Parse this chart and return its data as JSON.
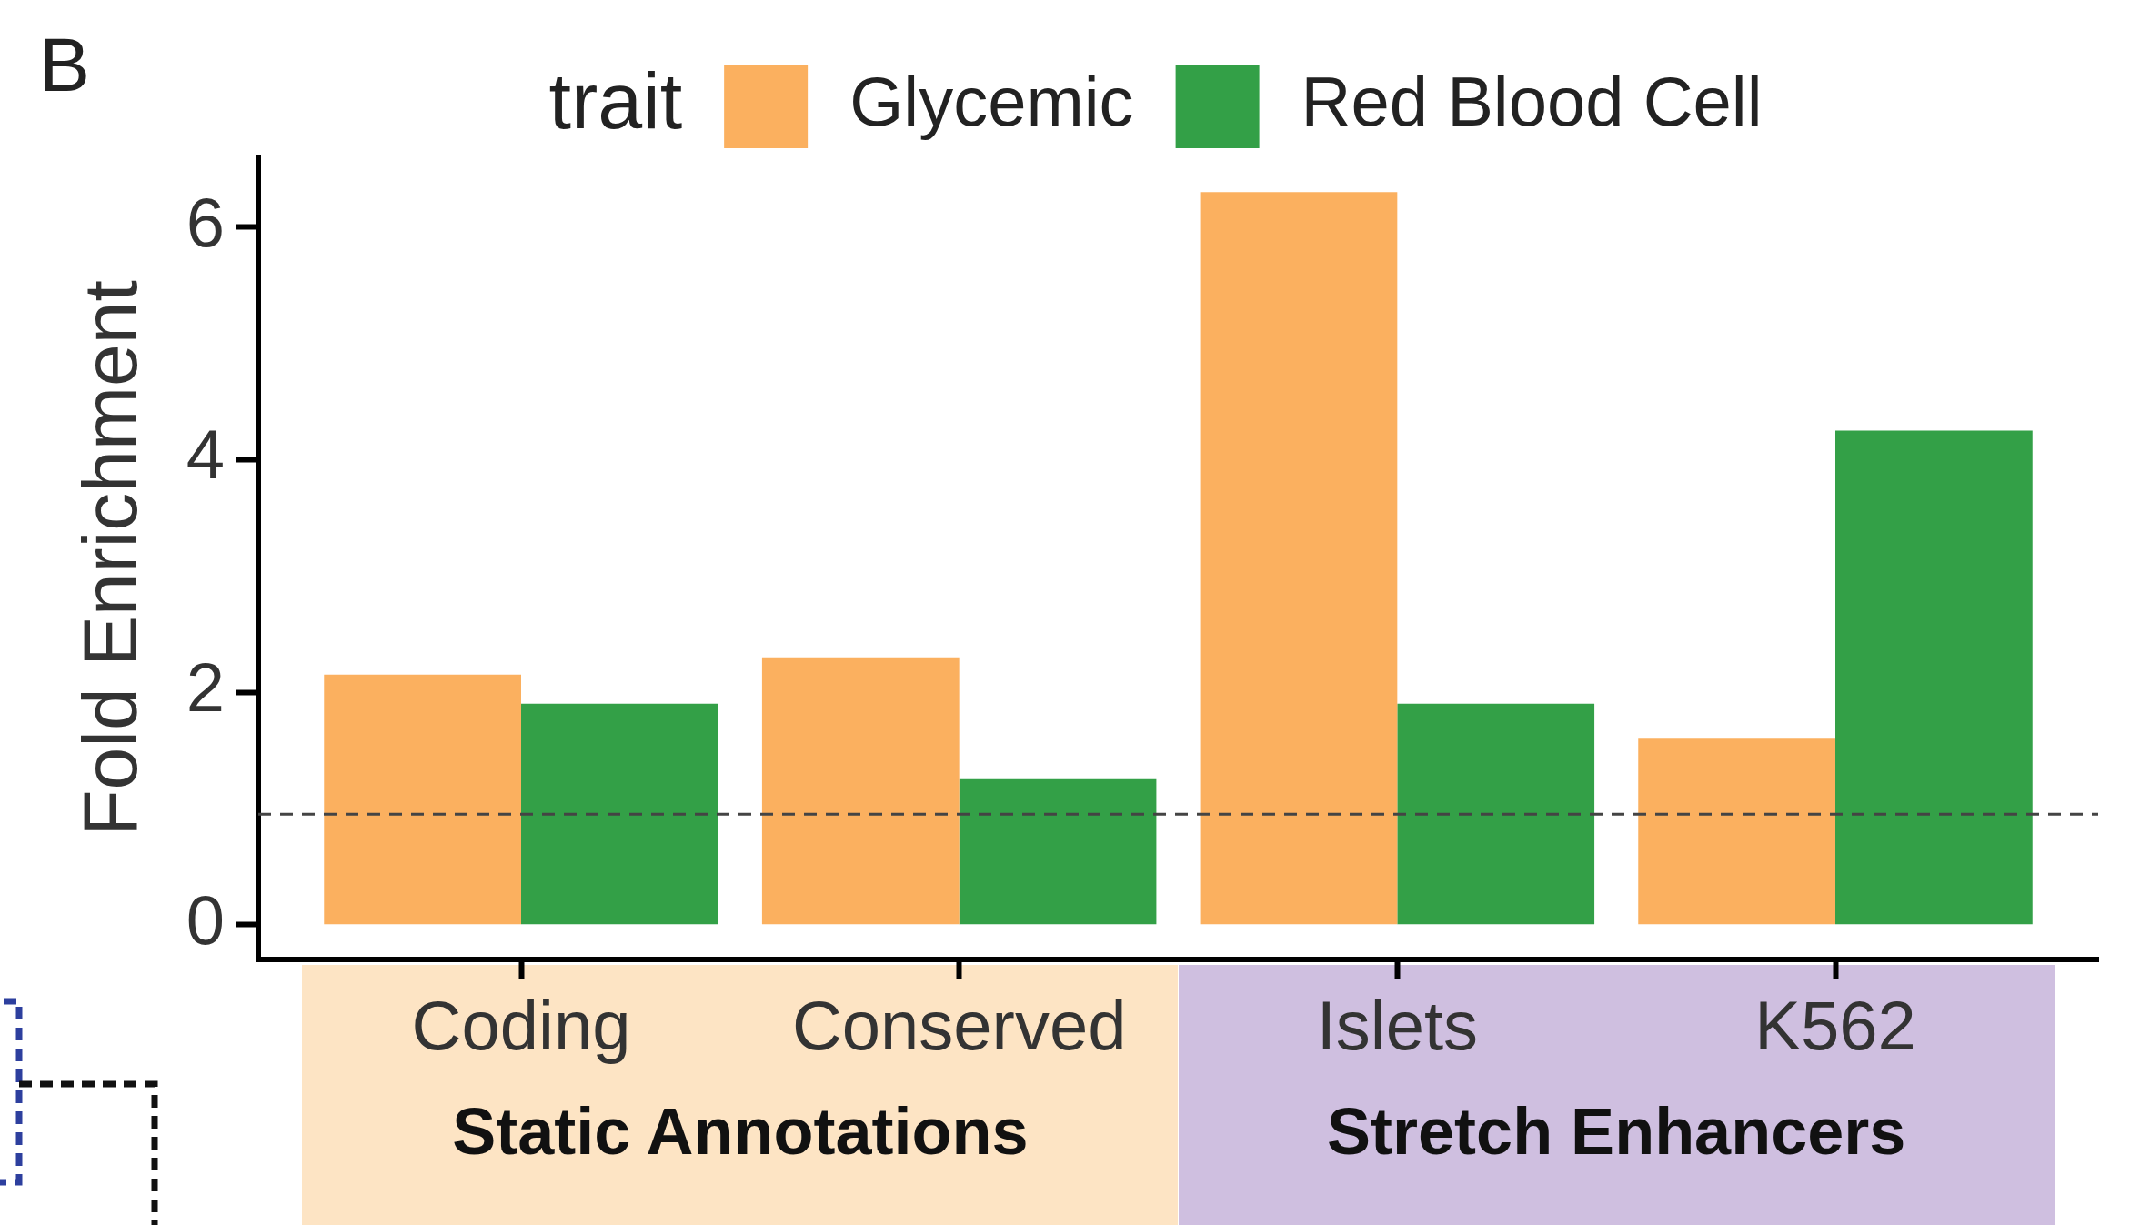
{
  "chart_data": {
    "type": "bar",
    "title": "B",
    "ylabel": "Fold Enrichment",
    "legend_title": "trait",
    "legend": "top",
    "categories": [
      "Coding",
      "Conserved",
      "Islets",
      "K562"
    ],
    "series": [
      {
        "name": "Glycemic",
        "color": "#fbb05f",
        "values": [
          2.15,
          2.3,
          6.3,
          1.6
        ]
      },
      {
        "name": "Red Blood Cell",
        "color": "#33a047",
        "values": [
          1.9,
          1.25,
          1.9,
          4.25
        ]
      }
    ],
    "ylim": [
      -0.3,
      6.6
    ],
    "yticks": [
      0,
      2,
      4,
      6
    ],
    "ref_lines": [
      {
        "axis": "y",
        "value": 0.95,
        "color": "#444444",
        "line_style": "dashed"
      }
    ],
    "annotations": [
      "Static Annotations",
      "Stretch Enhancers"
    ]
  }
}
